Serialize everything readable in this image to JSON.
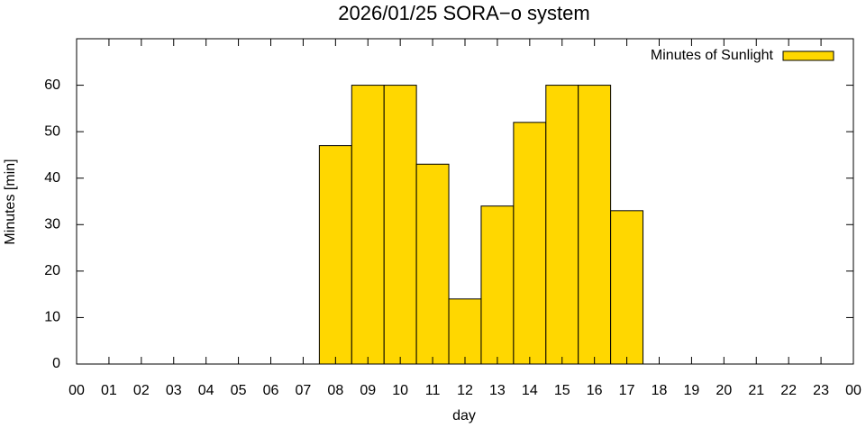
{
  "chart_data": {
    "type": "bar",
    "title": "2026/01/25 SORA−o system",
    "x_label": "day",
    "y_label": "Minutes [min]",
    "x": [
      8,
      9,
      10,
      11,
      12,
      13,
      14,
      15,
      16,
      17
    ],
    "series": [
      {
        "name": "Minutes of Sunlight",
        "color": "#ffd700",
        "values": [
          47,
          60,
          60,
          43,
          14,
          34,
          52,
          60,
          60,
          33
        ]
      }
    ],
    "xlim": [
      0,
      24
    ],
    "xticks": [
      {
        "value": 0,
        "label": "00"
      },
      {
        "value": 1,
        "label": "01"
      },
      {
        "value": 2,
        "label": "02"
      },
      {
        "value": 3,
        "label": "03"
      },
      {
        "value": 4,
        "label": "04"
      },
      {
        "value": 5,
        "label": "05"
      },
      {
        "value": 6,
        "label": "06"
      },
      {
        "value": 7,
        "label": "07"
      },
      {
        "value": 8,
        "label": "08"
      },
      {
        "value": 9,
        "label": "09"
      },
      {
        "value": 10,
        "label": "10"
      },
      {
        "value": 11,
        "label": "11"
      },
      {
        "value": 12,
        "label": "12"
      },
      {
        "value": 13,
        "label": "13"
      },
      {
        "value": 14,
        "label": "14"
      },
      {
        "value": 15,
        "label": "15"
      },
      {
        "value": 16,
        "label": "16"
      },
      {
        "value": 17,
        "label": "17"
      },
      {
        "value": 18,
        "label": "18"
      },
      {
        "value": 19,
        "label": "19"
      },
      {
        "value": 20,
        "label": "20"
      },
      {
        "value": 21,
        "label": "21"
      },
      {
        "value": 22,
        "label": "22"
      },
      {
        "value": 23,
        "label": "23"
      },
      {
        "value": 24,
        "label": "00"
      }
    ],
    "ylim": [
      0,
      70
    ],
    "yticks": [
      0,
      10,
      20,
      30,
      40,
      50,
      60
    ],
    "legend": "upper-right"
  }
}
